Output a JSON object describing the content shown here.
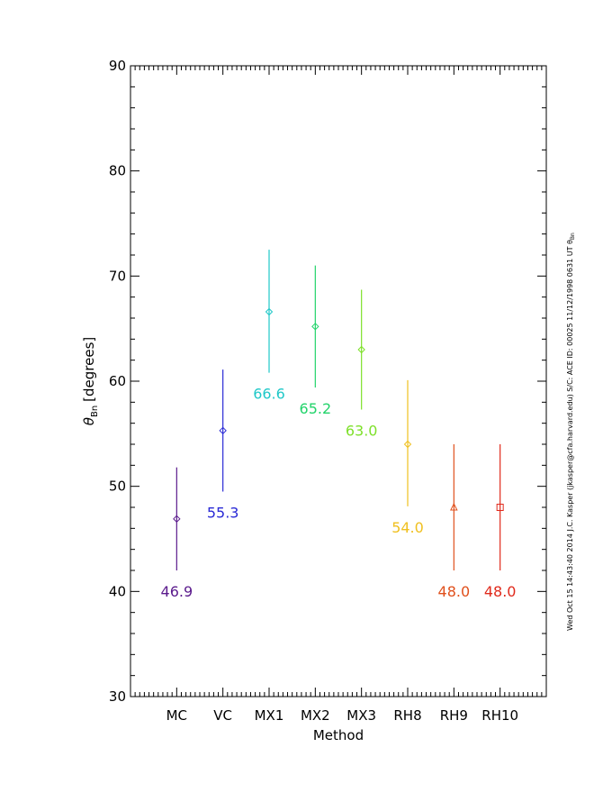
{
  "chart_data": {
    "type": "scatter",
    "title": "",
    "xlabel": "Method",
    "ylabel_symbol": "θ",
    "ylabel_subscript": "Bn",
    "ylabel_units": "[degrees]",
    "ylim": [
      30,
      90
    ],
    "yticks": [
      "30",
      "40",
      "50",
      "60",
      "70",
      "80",
      "90"
    ],
    "grid": false,
    "categories": [
      "MC",
      "VC",
      "MX1",
      "MX2",
      "MX3",
      "RH8",
      "RH9",
      "RH10"
    ],
    "points": [
      {
        "category": "MC",
        "value": 46.9,
        "label": "46.9",
        "low": 42.0,
        "high": 51.8,
        "marker": "diamond",
        "color": "#5a1a8c"
      },
      {
        "category": "VC",
        "value": 55.3,
        "label": "55.3",
        "low": 49.5,
        "high": 61.1,
        "marker": "diamond",
        "color": "#2a2ad6"
      },
      {
        "category": "MX1",
        "value": 66.6,
        "label": "66.6",
        "low": 60.8,
        "high": 72.5,
        "marker": "diamond",
        "color": "#1fc8c8"
      },
      {
        "category": "MX2",
        "value": 65.2,
        "label": "65.2",
        "low": 59.4,
        "high": 71.0,
        "marker": "diamond",
        "color": "#22d36a"
      },
      {
        "category": "MX3",
        "value": 63.0,
        "label": "63.0",
        "low": 57.3,
        "high": 68.7,
        "marker": "diamond",
        "color": "#7ee02a"
      },
      {
        "category": "RH8",
        "value": 54.0,
        "label": "54.0",
        "low": 48.1,
        "high": 60.1,
        "marker": "diamond",
        "color": "#f0c020"
      },
      {
        "category": "RH9",
        "value": 48.0,
        "label": "48.0",
        "low": 42.0,
        "high": 54.0,
        "marker": "triangle",
        "color": "#e0501c"
      },
      {
        "category": "RH10",
        "value": 48.0,
        "label": "48.0",
        "low": 42.0,
        "high": 54.0,
        "marker": "square",
        "color": "#e02a1c"
      }
    ]
  },
  "side_note": "Wed Oct 15 14:43:40 2014   J.C. Kasper (jkasper@cfa.harvard.edu)   S/C: ACE ID: 00025 11/12/1998  0631 UT θ",
  "side_note_sub": "Bn"
}
